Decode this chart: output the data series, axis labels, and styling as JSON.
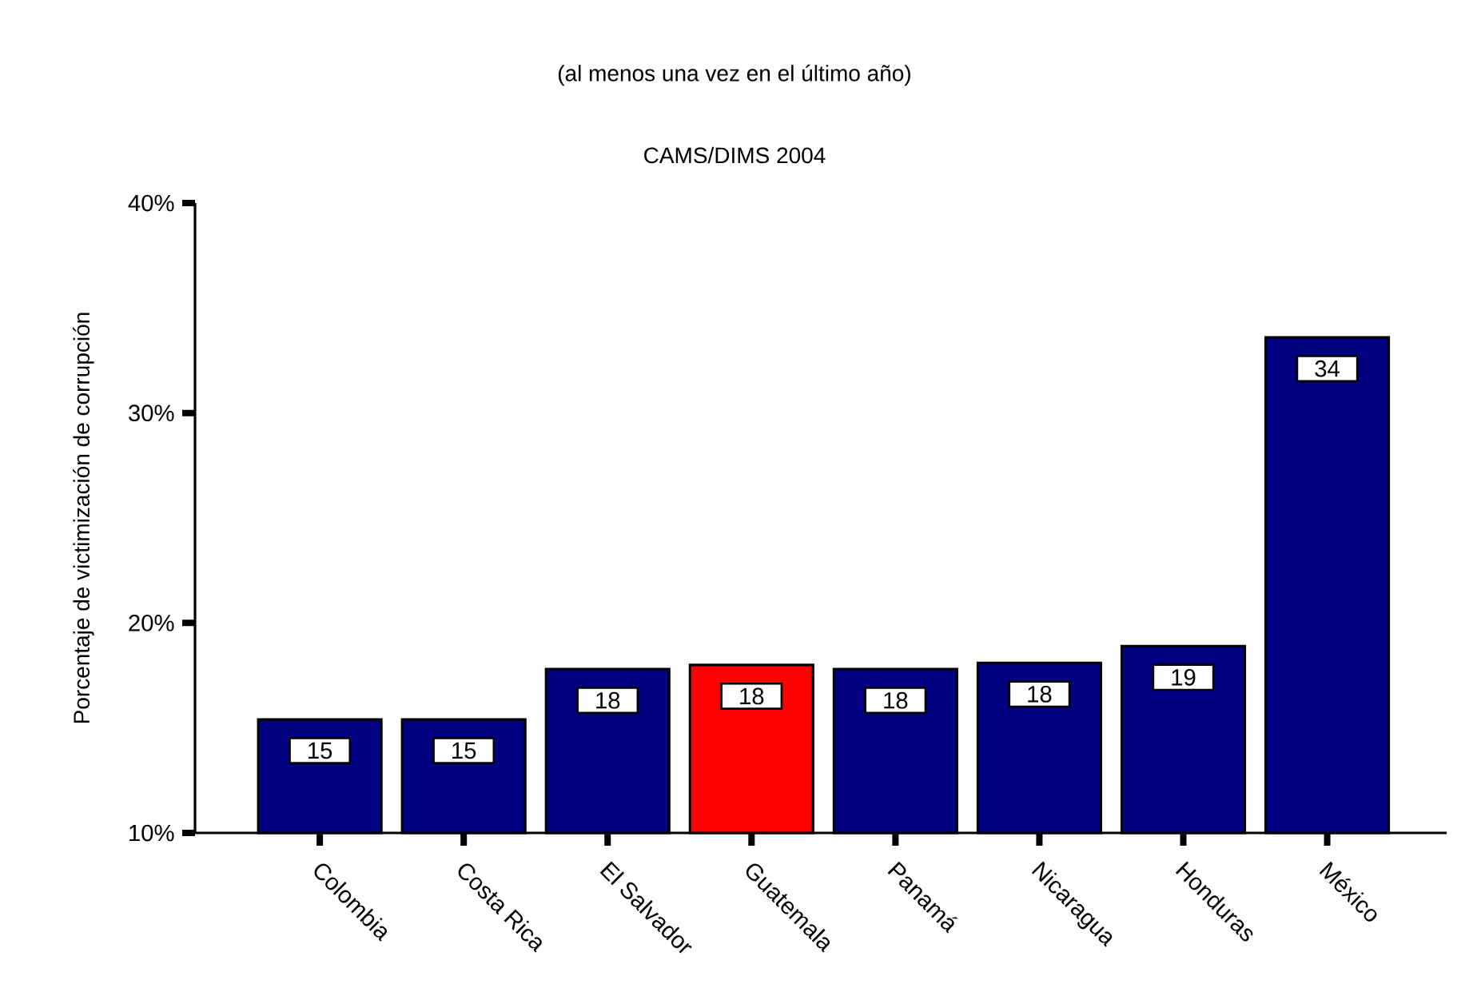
{
  "chart_data": {
    "type": "bar",
    "subtitle": "(al menos una vez en el último año)",
    "annotations": [
      "CAMS/DIMS 2004"
    ],
    "ylabel": "Porcentaje de victimización de corrupción",
    "categories": [
      "Colombia",
      "Costa Rica",
      "El Salvador",
      "Guatemala",
      "Panamá",
      "Nicaragua",
      "Honduras",
      "México"
    ],
    "values": [
      15.4,
      15.4,
      17.8,
      18.0,
      17.8,
      18.1,
      18.9,
      33.6
    ],
    "value_labels": [
      "15",
      "15",
      "18",
      "18",
      "18",
      "18",
      "19",
      "34"
    ],
    "colors": [
      "#000080",
      "#000080",
      "#000080",
      "#ff0000",
      "#000080",
      "#000080",
      "#000080",
      "#000080"
    ],
    "ylim": [
      10,
      40
    ],
    "yticks": [
      {
        "value": 10,
        "label": "10%"
      },
      {
        "value": 20,
        "label": "20%"
      },
      {
        "value": 30,
        "label": "30%"
      },
      {
        "value": 40,
        "label": "40%"
      }
    ],
    "grid": false
  }
}
